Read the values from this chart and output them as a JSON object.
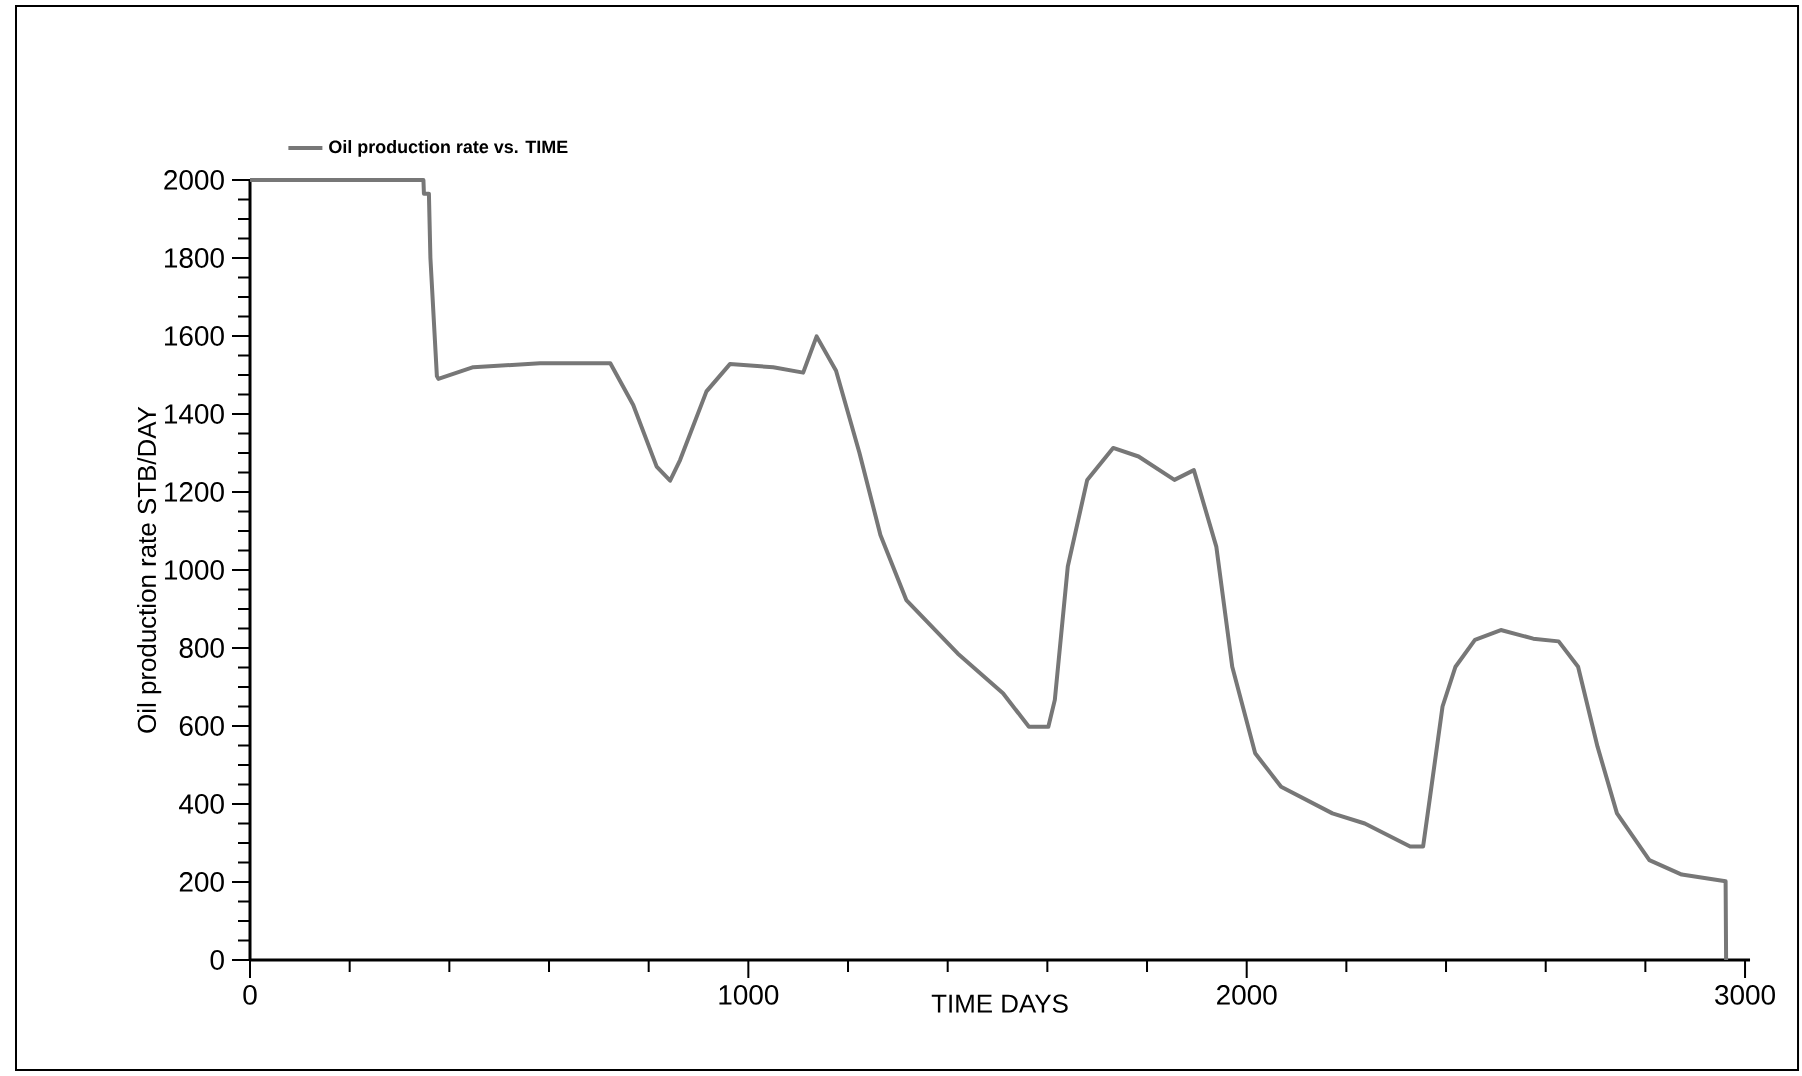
{
  "chart_data": {
    "type": "line",
    "xlabel": "TIME DAYS",
    "ylabel": "Oil production rate STB/DAY",
    "x": [
      0,
      348,
      349,
      359,
      362,
      375,
      378,
      448,
      582,
      723,
      769,
      816,
      843,
      863,
      916,
      963,
      1050,
      1110,
      1137,
      1176,
      1223,
      1265,
      1317,
      1420,
      1511,
      1563,
      1602,
      1615,
      1641,
      1680,
      1732,
      1783,
      1855,
      1894,
      1939,
      1971,
      2017,
      2069,
      2172,
      2237,
      2328,
      2354,
      2367,
      2393,
      2419,
      2458,
      2510,
      2575,
      2626,
      2665,
      2704,
      2743,
      2808,
      2873,
      2961,
      2962
    ],
    "series": [
      {
        "name": "Oil production rate vs. TIME",
        "color": "#777777",
        "values": [
          2000,
          2000,
          1965,
          1965,
          1800,
          1497,
          1490,
          1520,
          1530,
          1530,
          1423,
          1265,
          1229,
          1282,
          1458,
          1528,
          1520,
          1506,
          1599,
          1511,
          1300,
          1090,
          923,
          786,
          684,
          598,
          598,
          667,
          1009,
          1231,
          1313,
          1291,
          1231,
          1256,
          1060,
          752,
          530,
          444,
          376,
          350,
          291,
          291,
          410,
          650,
          752,
          821,
          846,
          824,
          817,
          752,
          547,
          376,
          256,
          219,
          202,
          0
        ]
      }
    ],
    "xlim": [
      0,
      3010
    ],
    "ylim": [
      0,
      2000
    ],
    "xticks": [
      0,
      1000,
      2000,
      3000
    ],
    "yticks": [
      0,
      200,
      400,
      600,
      800,
      1000,
      1200,
      1400,
      1600,
      1800,
      2000
    ],
    "legend": "top left"
  }
}
